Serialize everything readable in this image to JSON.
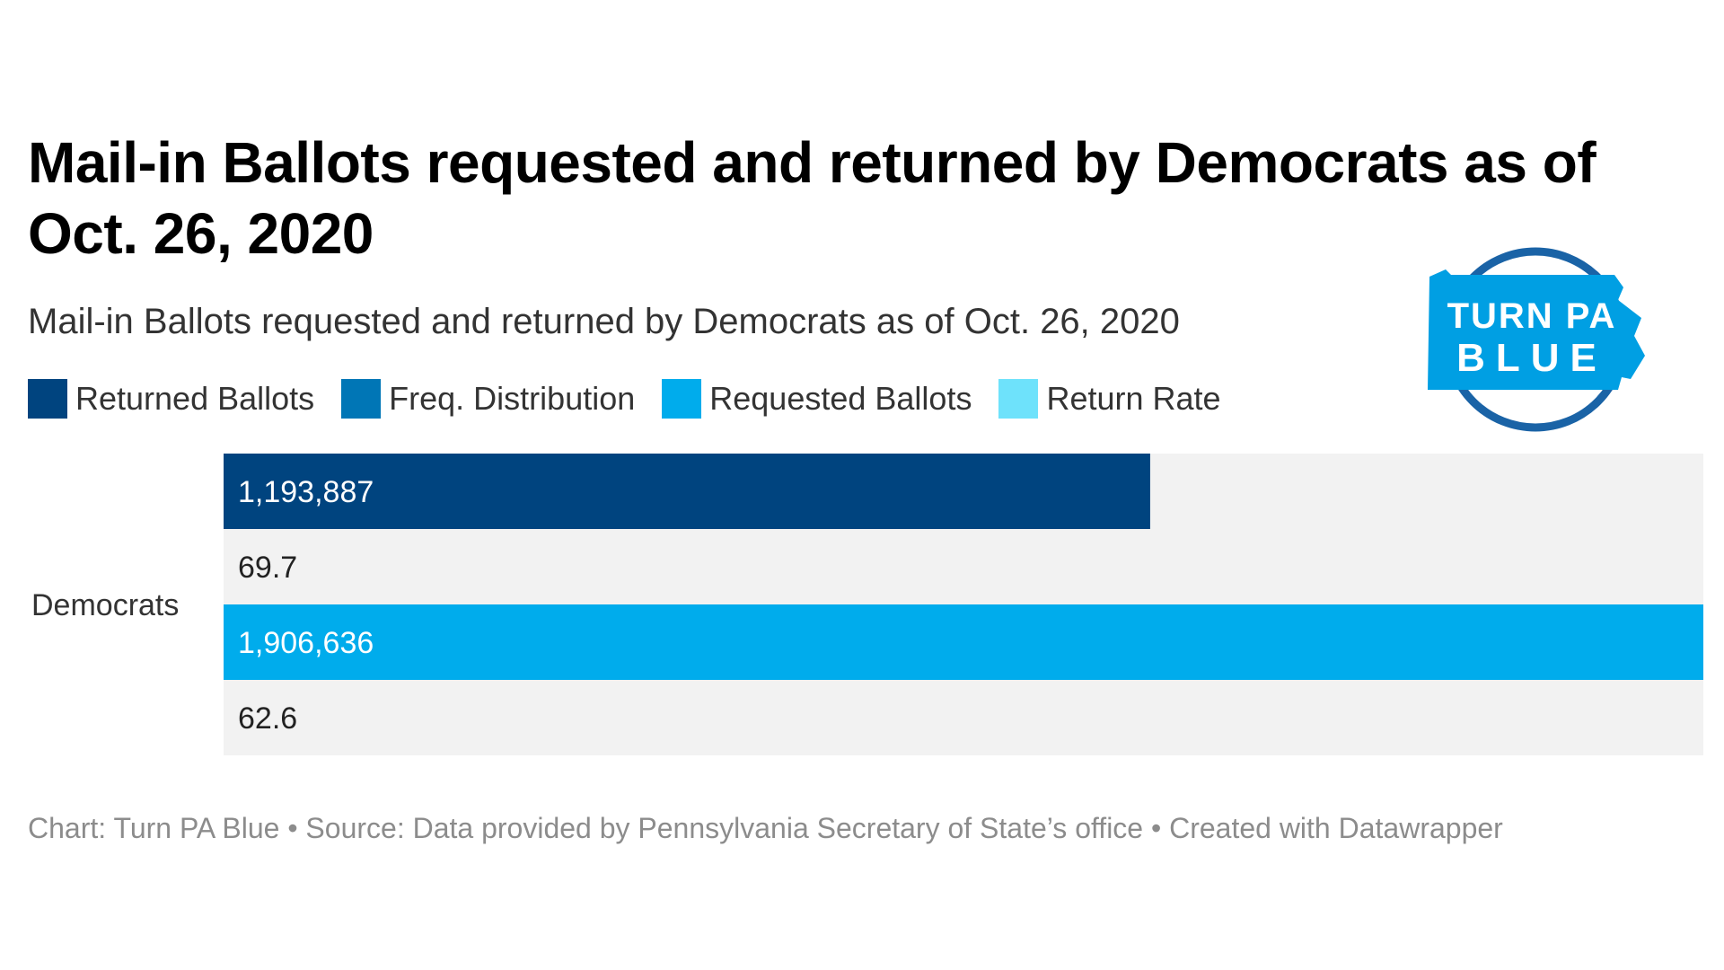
{
  "title": "Mail-in Ballots requested and returned by Democrats as of Oct. 26, 2020",
  "subtitle": "Mail-in Ballots requested and returned by Democrats as of Oct. 26, 2020",
  "legend": [
    {
      "label": "Returned Ballots",
      "color": "#00447f"
    },
    {
      "label": "Freq. Distribution",
      "color": "#0076b6"
    },
    {
      "label": "Requested Ballots",
      "color": "#00acec"
    },
    {
      "label": "Return Rate",
      "color": "#6ee2fb"
    }
  ],
  "logo": {
    "line1": "TURN PA",
    "line2": "BLUE",
    "shape_color": "#009fe3",
    "ring_color": "#1a63a6",
    "text_color": "#ffffff"
  },
  "footer": "Chart: Turn PA Blue • Source: Data provided by Pennsylvania Secretary of State’s office • Created with Datawrapper",
  "chart_data": {
    "type": "bar",
    "orientation": "horizontal",
    "title": "Mail-in Ballots requested and returned by Democrats as of Oct. 26, 2020",
    "subtitle": "Mail-in Ballots requested and returned by Democrats as of Oct. 26, 2020",
    "categories": [
      "Democrats"
    ],
    "series": [
      {
        "name": "Returned Ballots",
        "values": [
          1193887
        ],
        "labels": [
          "1,193,887"
        ],
        "color": "#00447f",
        "max": 1906636
      },
      {
        "name": "Freq. Distribution",
        "values": [
          69.7
        ],
        "labels": [
          "69.7"
        ],
        "color": "#0076b6",
        "max": 100
      },
      {
        "name": "Requested Ballots",
        "values": [
          1906636
        ],
        "labels": [
          "1,906,636"
        ],
        "color": "#00acec",
        "max": 1906636
      },
      {
        "name": "Return Rate",
        "values": [
          62.6
        ],
        "labels": [
          "62.6"
        ],
        "color": "#6ee2fb",
        "max": 100
      }
    ],
    "background_color": "#f2f2f2",
    "grid": false,
    "legend_position": "top-left"
  }
}
